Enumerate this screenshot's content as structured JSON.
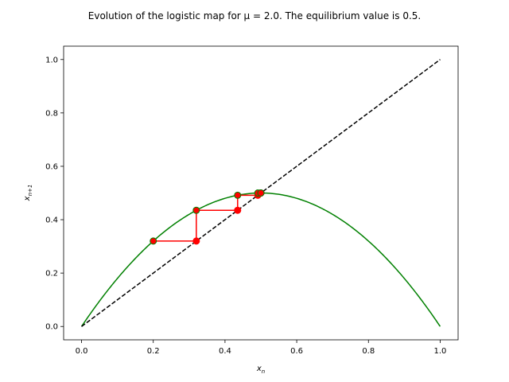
{
  "chart_data": {
    "type": "line",
    "title": "Evolution of the logistic map for μ = 2.0. The equilibrium value is 0.5.",
    "xlabel": {
      "base": "x",
      "sub": "n"
    },
    "ylabel": {
      "base": "x",
      "sub": "n+1"
    },
    "xlim": [
      -0.05,
      1.05
    ],
    "ylim": [
      -0.05,
      1.05
    ],
    "xticks": [
      0.0,
      0.2,
      0.4,
      0.6,
      0.8,
      1.0
    ],
    "yticks": [
      0.0,
      0.2,
      0.4,
      0.6,
      0.8,
      1.0
    ],
    "xtick_labels": [
      "0.0",
      "0.2",
      "0.4",
      "0.6",
      "0.8",
      "1.0"
    ],
    "ytick_labels": [
      "0.0",
      "0.2",
      "0.4",
      "0.6",
      "0.8",
      "1.0"
    ],
    "grid": false,
    "mu": 2.0,
    "x0": 0.2,
    "series": [
      {
        "kind": "curve",
        "color": "#008000",
        "function": "mu*x*(1-x)",
        "x_range": [
          0,
          1
        ]
      },
      {
        "kind": "identity",
        "color": "#000000",
        "style": "dashed",
        "points": [
          [
            0,
            0
          ],
          [
            1,
            1
          ]
        ]
      },
      {
        "kind": "cobweb",
        "color": "#ff0000",
        "marker_color": "#ff0000",
        "marker_edge_color": "#008000",
        "iterates": [
          0.2,
          0.32,
          0.4352,
          0.49160192,
          0.49985894,
          0.49999996,
          0.5
        ]
      }
    ]
  }
}
